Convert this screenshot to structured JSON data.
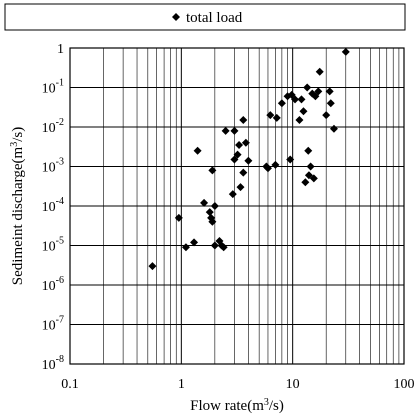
{
  "chart_data": {
    "type": "scatter",
    "title": "",
    "xlabel_base": "Flow rate(m",
    "xlabel_sup": "3",
    "xlabel_tail": "/s)",
    "ylabel_base": "Sedimeint discharge(m",
    "ylabel_sup": "3",
    "ylabel_tail": "/s)",
    "xscale": "log",
    "yscale": "log",
    "xlim": [
      0.1,
      100
    ],
    "ylim": [
      1e-08,
      1
    ],
    "grid": true,
    "legend_position": "top",
    "x_ticks": [
      {
        "value": 0.1,
        "label": "0.1"
      },
      {
        "value": 1,
        "label": "1"
      },
      {
        "value": 10,
        "label": "10"
      },
      {
        "value": 100,
        "label": "100"
      }
    ],
    "y_ticks": [
      {
        "value": 1,
        "base": "1",
        "exp": ""
      },
      {
        "value": 0.1,
        "base": "10",
        "exp": "-1"
      },
      {
        "value": 0.01,
        "base": "10",
        "exp": "-2"
      },
      {
        "value": 0.001,
        "base": "10",
        "exp": "-3"
      },
      {
        "value": 0.0001,
        "base": "10",
        "exp": "-4"
      },
      {
        "value": 1e-05,
        "base": "10",
        "exp": "-5"
      },
      {
        "value": 1e-06,
        "base": "10",
        "exp": "-6"
      },
      {
        "value": 1e-07,
        "base": "10",
        "exp": "-7"
      },
      {
        "value": 1e-08,
        "base": "10",
        "exp": "-8"
      }
    ],
    "series": [
      {
        "name": "total load",
        "marker": "diamond",
        "color": "#000000",
        "points": [
          [
            0.55,
            3e-06
          ],
          [
            0.95,
            5e-05
          ],
          [
            1.1,
            9e-06
          ],
          [
            1.3,
            1.2e-05
          ],
          [
            1.4,
            0.0025
          ],
          [
            1.6,
            0.00012
          ],
          [
            1.8,
            7e-05
          ],
          [
            1.85,
            5e-05
          ],
          [
            1.9,
            4e-05
          ],
          [
            1.9,
            0.0008
          ],
          [
            2.0,
            1e-05
          ],
          [
            2.0,
            0.0001
          ],
          [
            2.2,
            1.3e-05
          ],
          [
            2.3,
            1e-05
          ],
          [
            2.4,
            9e-06
          ],
          [
            2.5,
            0.008
          ],
          [
            2.9,
            0.0002
          ],
          [
            3.0,
            0.008
          ],
          [
            3.0,
            0.0015
          ],
          [
            3.2,
            0.002
          ],
          [
            3.3,
            0.0035
          ],
          [
            3.4,
            0.0003
          ],
          [
            3.6,
            0.0007
          ],
          [
            3.6,
            0.015
          ],
          [
            3.8,
            0.004
          ],
          [
            4.0,
            0.0014
          ],
          [
            5.8,
            0.001
          ],
          [
            6.0,
            0.0009
          ],
          [
            6.3,
            0.02
          ],
          [
            7.0,
            0.0011
          ],
          [
            7.2,
            0.017
          ],
          [
            8.0,
            0.04
          ],
          [
            9.0,
            0.06
          ],
          [
            9.5,
            0.0015
          ],
          [
            9.8,
            0.065
          ],
          [
            10.5,
            0.05
          ],
          [
            11.5,
            0.015
          ],
          [
            12.0,
            0.05
          ],
          [
            12.5,
            0.025
          ],
          [
            13.0,
            0.0004
          ],
          [
            13.5,
            0.1
          ],
          [
            13.8,
            0.0025
          ],
          [
            14.0,
            0.0006
          ],
          [
            14.5,
            0.001
          ],
          [
            15.0,
            0.07
          ],
          [
            15.5,
            0.0005
          ],
          [
            16.0,
            0.06
          ],
          [
            17.0,
            0.08
          ],
          [
            17.5,
            0.25
          ],
          [
            20.0,
            0.02
          ],
          [
            21.5,
            0.08
          ],
          [
            22.0,
            0.04
          ],
          [
            23.5,
            0.009
          ],
          [
            30.0,
            0.8
          ]
        ]
      }
    ]
  }
}
